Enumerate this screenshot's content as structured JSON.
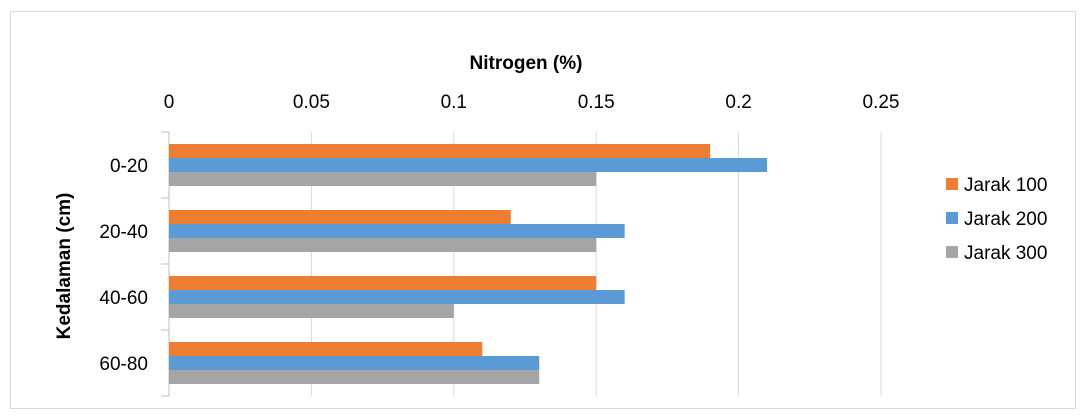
{
  "chart_data": {
    "type": "bar",
    "orientation": "horizontal",
    "categories": [
      "0-20",
      "20-40",
      "40-60",
      "60-80"
    ],
    "series": [
      {
        "name": "Jarak 100",
        "color": "#ed7d31",
        "values": [
          0.19,
          0.12,
          0.15,
          0.11
        ]
      },
      {
        "name": "Jarak 200",
        "color": "#5b9bd5",
        "values": [
          0.21,
          0.16,
          0.16,
          0.13
        ]
      },
      {
        "name": "Jarak 300",
        "color": "#a5a5a5",
        "values": [
          0.15,
          0.15,
          0.1,
          0.13
        ]
      }
    ],
    "xlabel": "Nitrogen (%)",
    "ylabel": "Kedalaman (cm)",
    "xlim": [
      0,
      0.25
    ],
    "xticks": [
      "0",
      "0.05",
      "0.1",
      "0.15",
      "0.2",
      "0.25"
    ],
    "x_axis_position": "top",
    "grid": true,
    "legend_position": "right"
  }
}
